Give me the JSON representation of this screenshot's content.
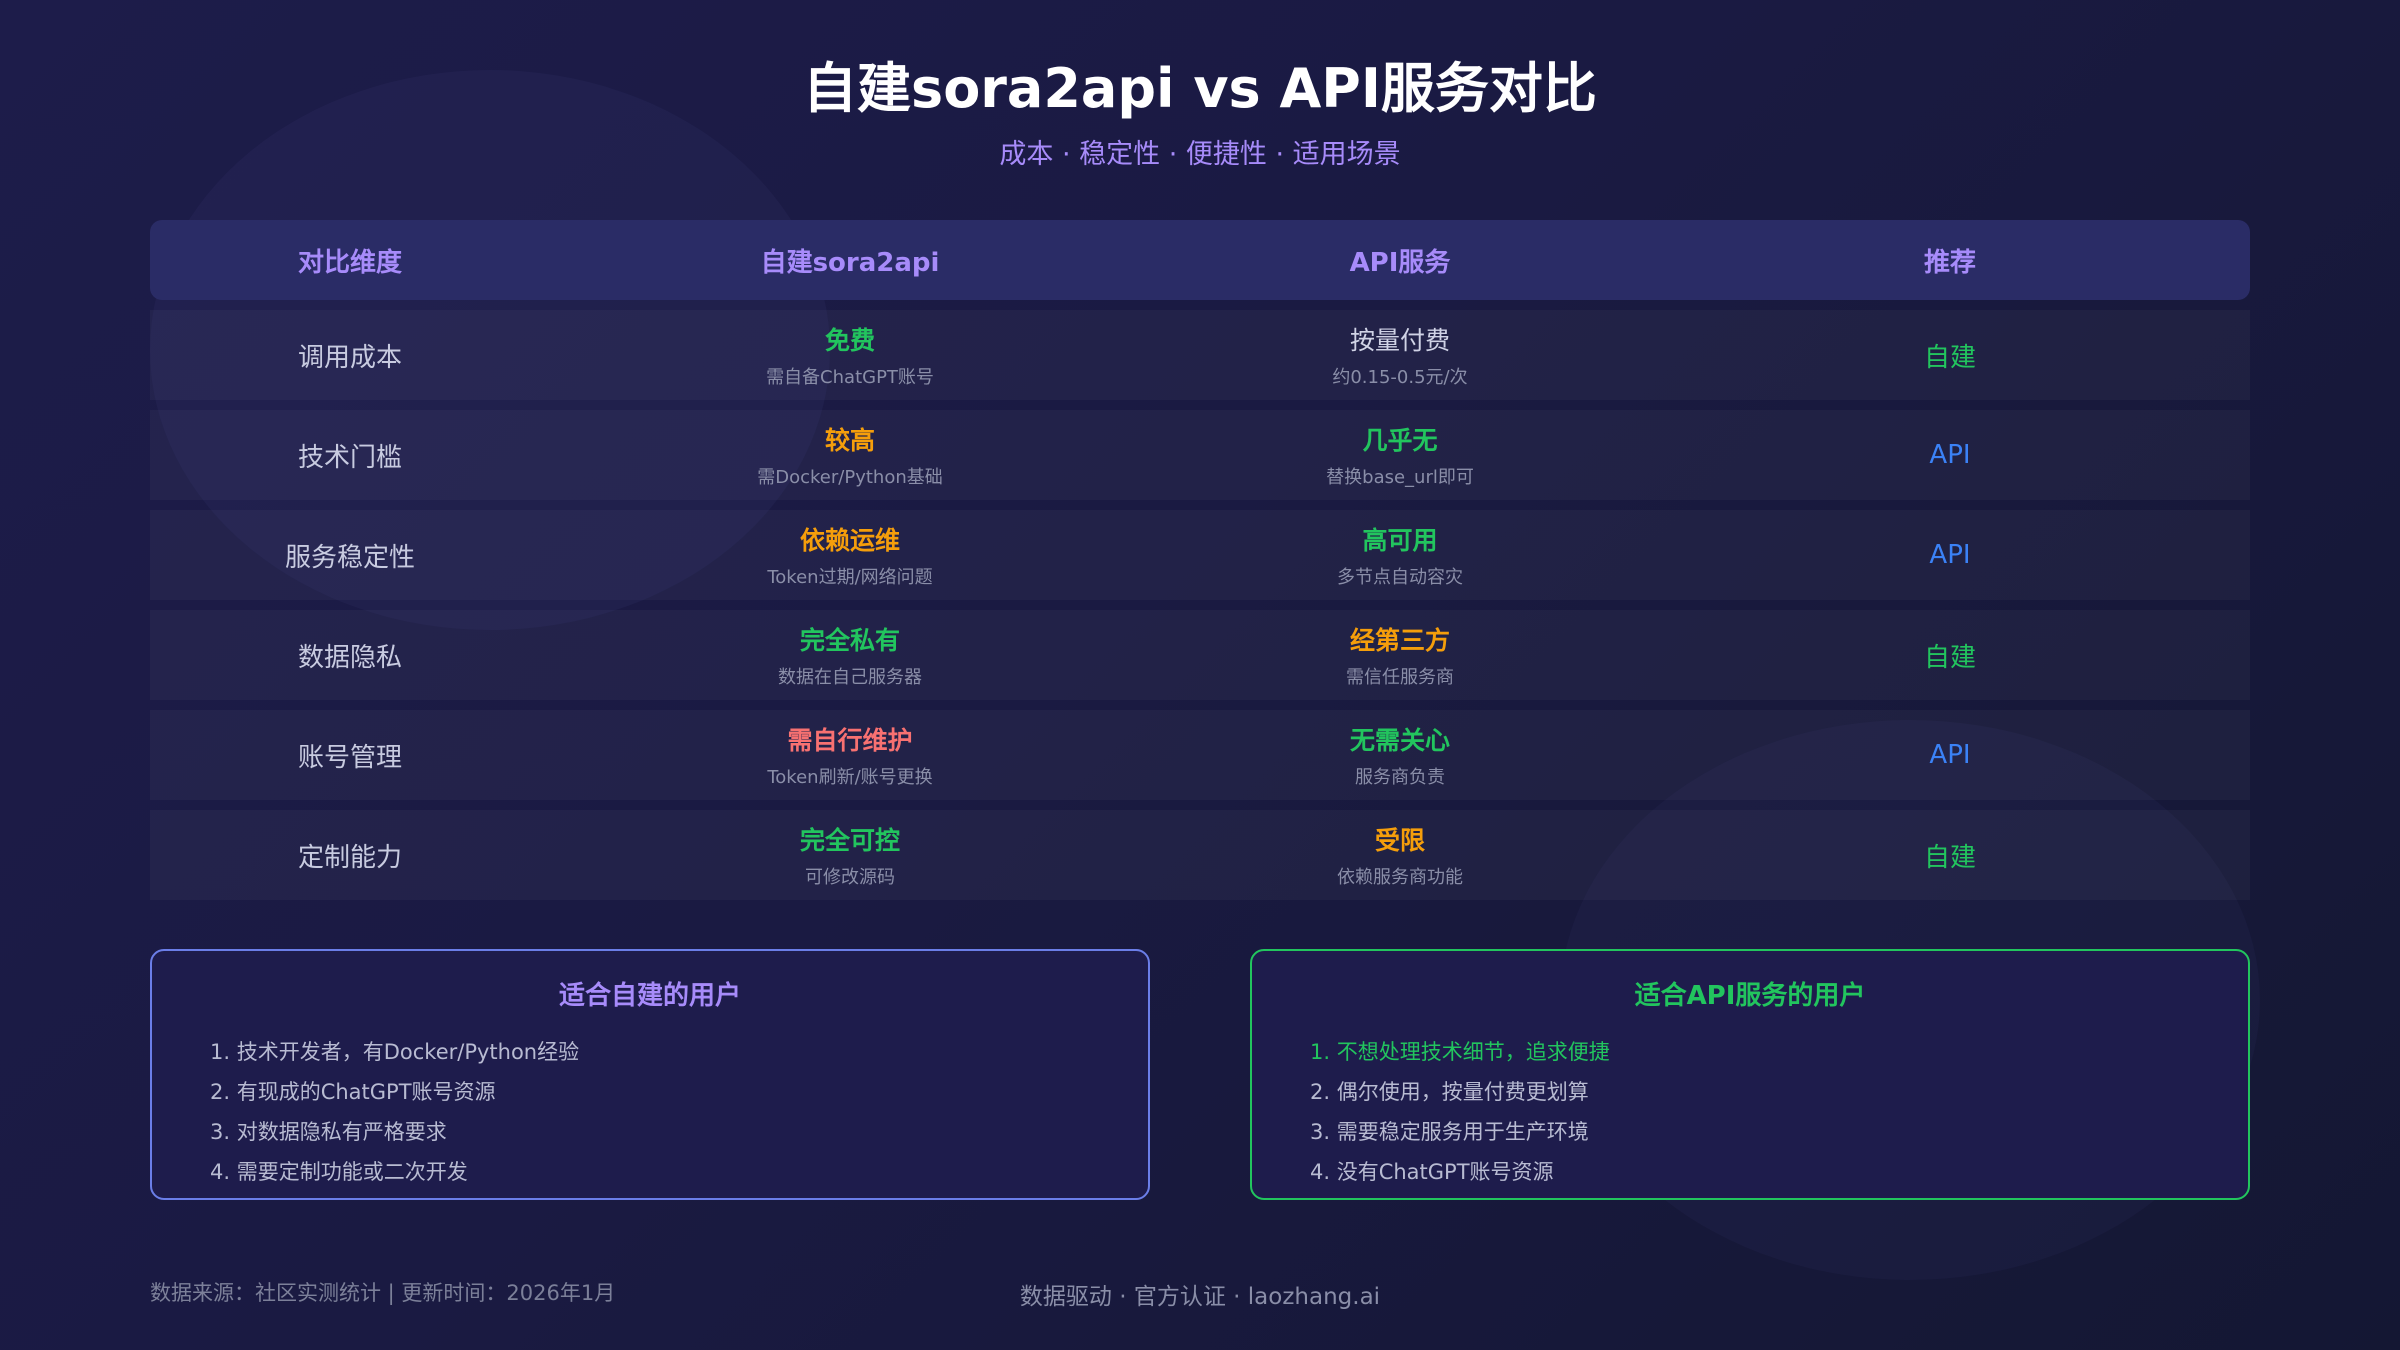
{
  "title": "自建sora2api vs API服务对比",
  "subtitle": "成本 · 稳定性 · 便捷性 · 适用场景",
  "colors": {
    "green": "#22c55e",
    "orange": "#f59e0b",
    "red": "#f87171",
    "blue": "#3b82f6",
    "purple": "#a78bfa"
  },
  "table": {
    "headers": [
      "对比维度",
      "自建sora2api",
      "API服务",
      "推荐"
    ],
    "rows": [
      {
        "dimension": "调用成本",
        "self": {
          "main": "免费",
          "sub": "需自备ChatGPT账号",
          "tone": "green"
        },
        "api": {
          "main": "按量付费",
          "sub": "约0.15-0.5元/次",
          "tone": "neutral"
        },
        "rec": "自建",
        "rec_tone": "green"
      },
      {
        "dimension": "技术门槛",
        "self": {
          "main": "较高",
          "sub": "需Docker/Python基础",
          "tone": "orange"
        },
        "api": {
          "main": "几乎无",
          "sub": "替换base_url即可",
          "tone": "green"
        },
        "rec": "API",
        "rec_tone": "blue"
      },
      {
        "dimension": "服务稳定性",
        "self": {
          "main": "依赖运维",
          "sub": "Token过期/网络问题",
          "tone": "orange"
        },
        "api": {
          "main": "高可用",
          "sub": "多节点自动容灾",
          "tone": "green"
        },
        "rec": "API",
        "rec_tone": "blue"
      },
      {
        "dimension": "数据隐私",
        "self": {
          "main": "完全私有",
          "sub": "数据在自己服务器",
          "tone": "green"
        },
        "api": {
          "main": "经第三方",
          "sub": "需信任服务商",
          "tone": "orange"
        },
        "rec": "自建",
        "rec_tone": "green"
      },
      {
        "dimension": "账号管理",
        "self": {
          "main": "需自行维护",
          "sub": "Token刷新/账号更换",
          "tone": "red"
        },
        "api": {
          "main": "无需关心",
          "sub": "服务商负责",
          "tone": "green"
        },
        "rec": "API",
        "rec_tone": "blue"
      },
      {
        "dimension": "定制能力",
        "self": {
          "main": "完全可控",
          "sub": "可修改源码",
          "tone": "green"
        },
        "api": {
          "main": "受限",
          "sub": "依赖服务商功能",
          "tone": "orange"
        },
        "rec": "自建",
        "rec_tone": "green"
      }
    ]
  },
  "cards": {
    "self": {
      "title": "适合自建的用户",
      "items": [
        "1. 技术开发者，有Docker/Python经验",
        "2. 有现成的ChatGPT账号资源",
        "3. 对数据隐私有严格要求",
        "4. 需要定制功能或二次开发"
      ]
    },
    "api": {
      "title": "适合API服务的用户",
      "items": [
        "1. 不想处理技术细节，追求便捷",
        "2. 偶尔使用，按量付费更划算",
        "3. 需要稳定服务用于生产环境",
        "4. 没有ChatGPT账号资源"
      ],
      "highlighted_item": 0
    }
  },
  "footer": {
    "left": "数据来源：社区实测统计 | 更新时间：2026年1月",
    "center": "数据驱动 · 官方认证 · laozhang.ai"
  }
}
